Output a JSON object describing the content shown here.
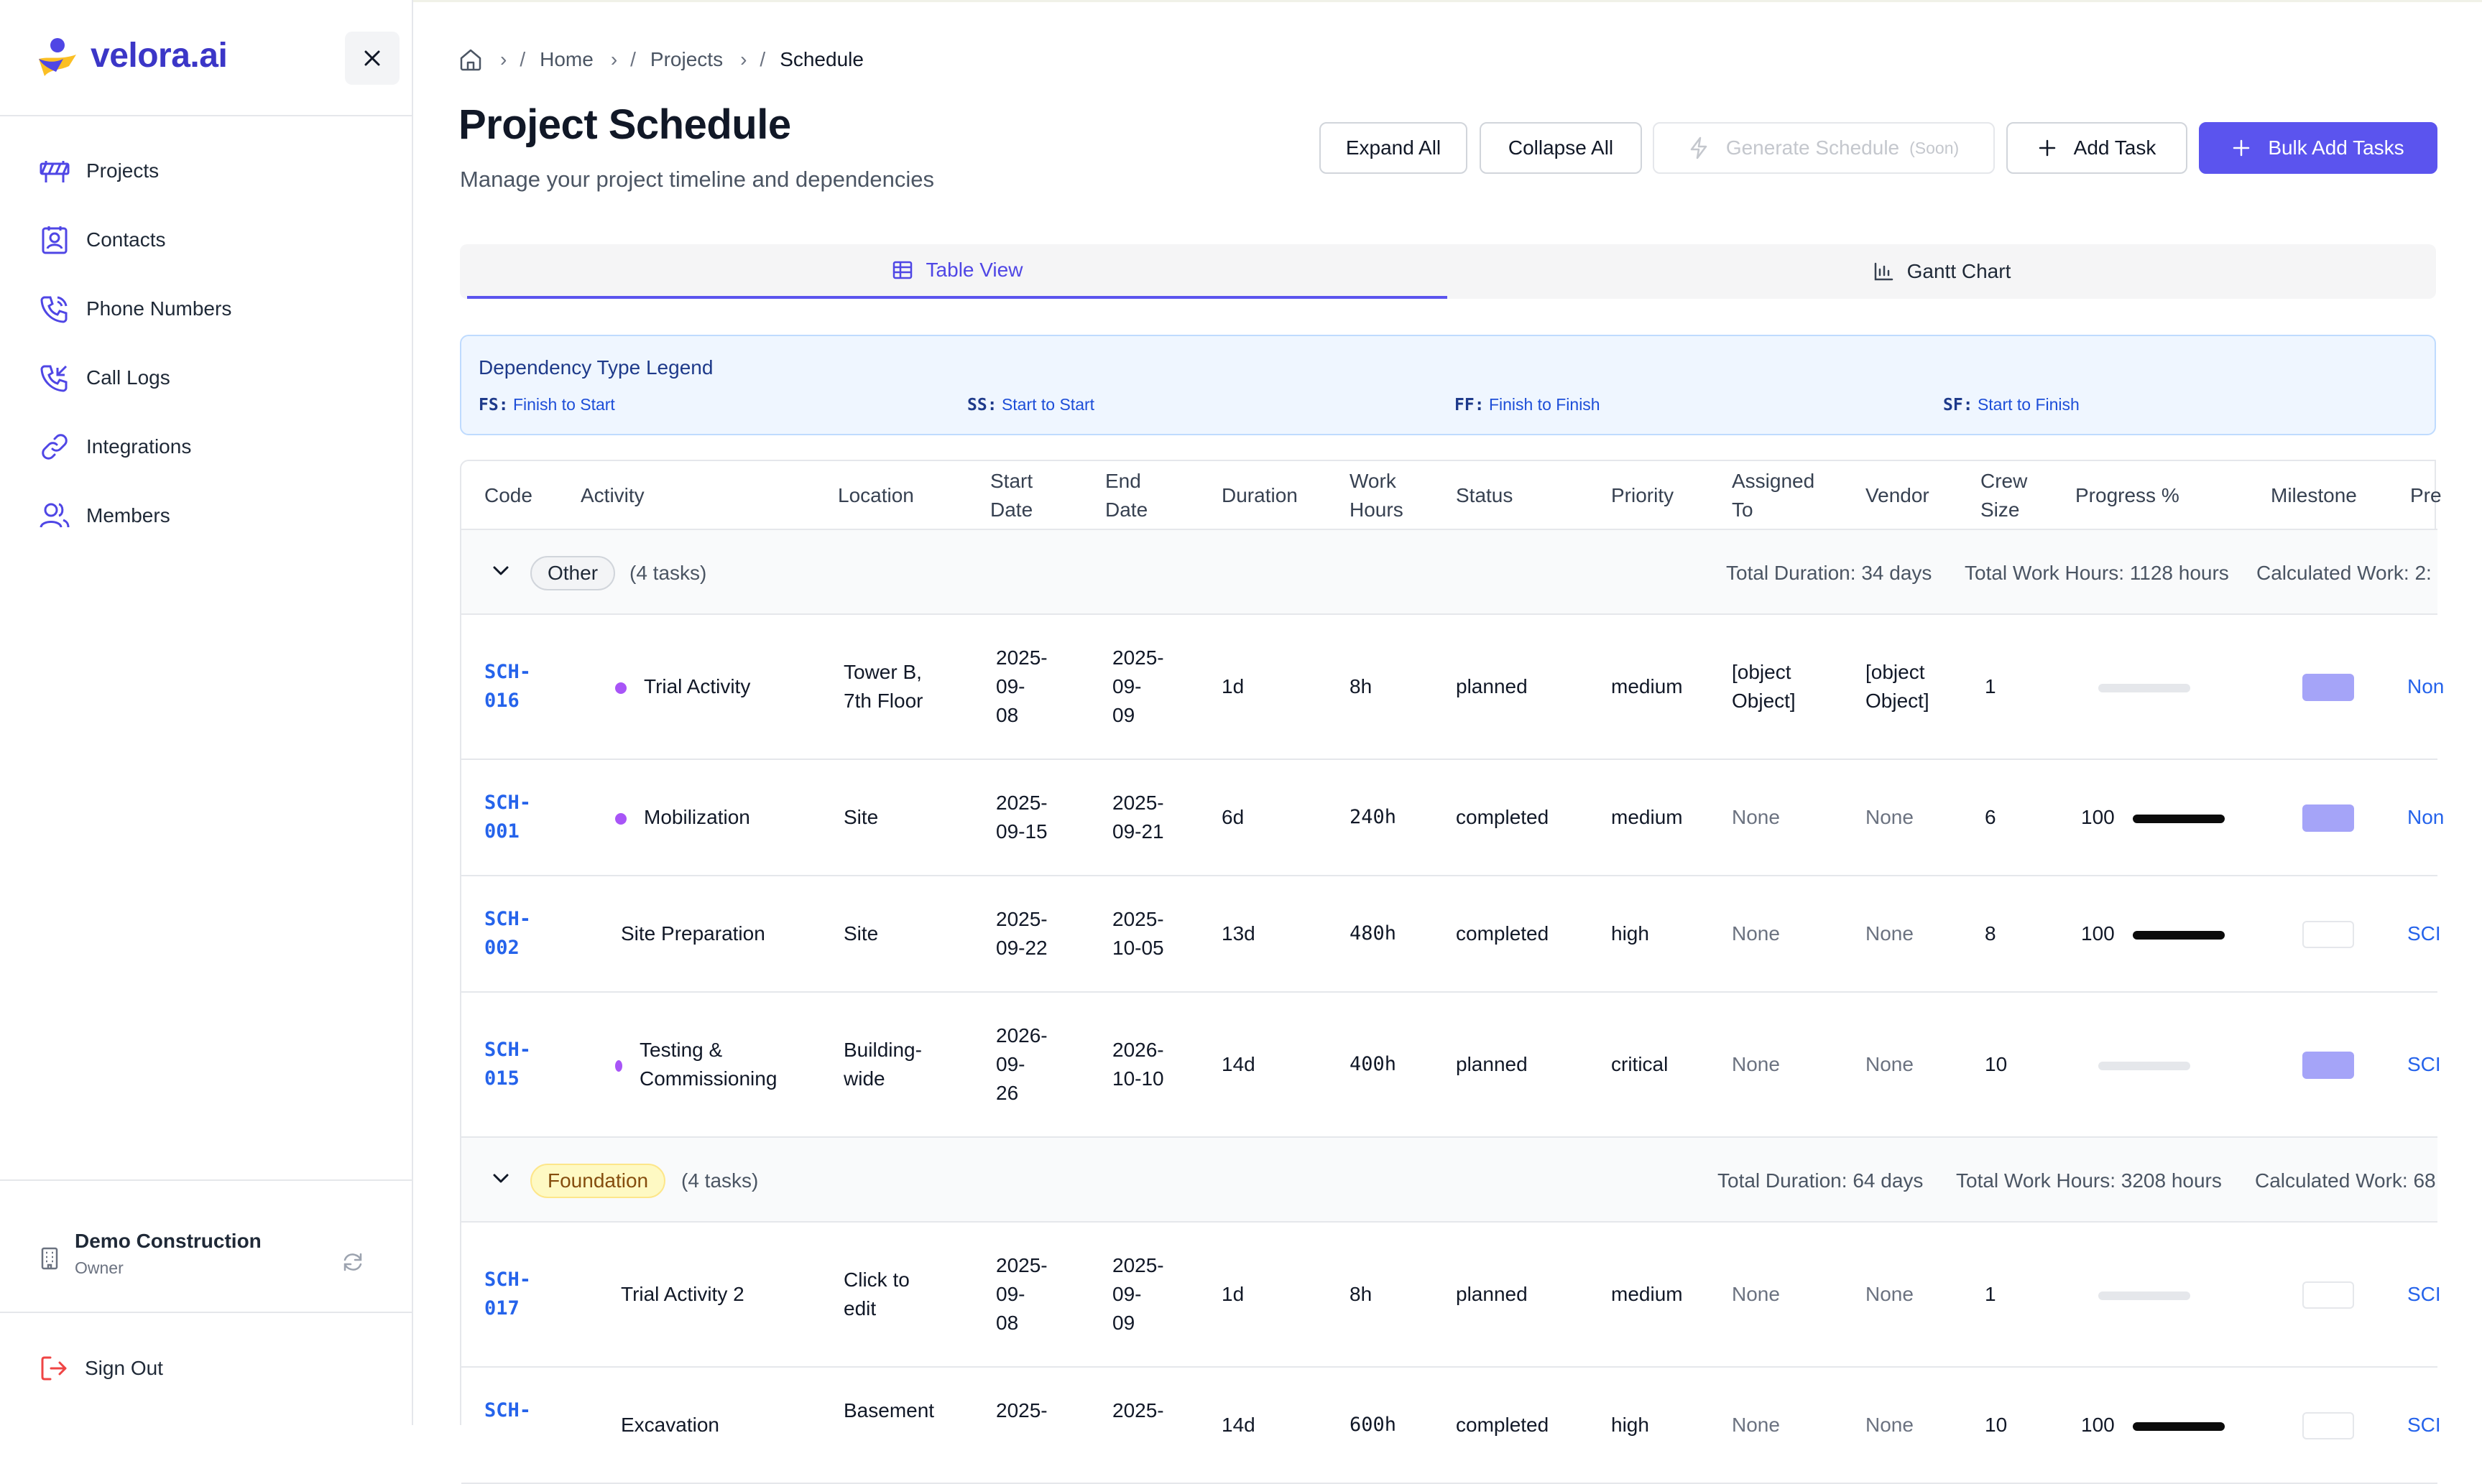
{
  "brand": {
    "name": "velora.ai",
    "accent": "#3b36c7",
    "primary": "#5b54ee"
  },
  "sidebar": {
    "items": [
      {
        "label": "Projects",
        "icon": "construction-barrier-icon"
      },
      {
        "label": "Contacts",
        "icon": "contact-card-icon"
      },
      {
        "label": "Phone Numbers",
        "icon": "phone-icon"
      },
      {
        "label": "Call Logs",
        "icon": "phone-incoming-icon"
      },
      {
        "label": "Integrations",
        "icon": "link-icon"
      },
      {
        "label": "Members",
        "icon": "users-icon"
      }
    ],
    "org": {
      "name": "Demo Construction",
      "role": "Owner"
    },
    "sign_out": "Sign Out"
  },
  "breadcrumb": {
    "home": "Home",
    "projects": "Projects",
    "current": "Schedule"
  },
  "header": {
    "title": "Project Schedule",
    "subtitle": "Manage your project timeline and dependencies"
  },
  "toolbar": {
    "expand_all": "Expand All",
    "collapse_all": "Collapse All",
    "generate": "Generate Schedule",
    "generate_soon": "(Soon)",
    "add_task": "Add Task",
    "bulk_add": "Bulk Add Tasks"
  },
  "tabs": {
    "table": "Table View",
    "gantt": "Gantt Chart"
  },
  "legend": {
    "title": "Dependency Type Legend",
    "items": [
      {
        "code": "FS:",
        "label": "Finish to Start"
      },
      {
        "code": "SS:",
        "label": "Start to Start"
      },
      {
        "code": "FF:",
        "label": "Finish to Finish"
      },
      {
        "code": "SF:",
        "label": "Start to Finish"
      }
    ]
  },
  "table": {
    "columns": {
      "code": "Code",
      "activity": "Activity",
      "location": "Location",
      "start_1": "Start",
      "start_2": "Date",
      "end_1": "End",
      "end_2": "Date",
      "duration": "Duration",
      "work_1": "Work",
      "work_2": "Hours",
      "status": "Status",
      "priority": "Priority",
      "assigned_1": "Assigned",
      "assigned_2": "To",
      "vendor": "Vendor",
      "crew_1": "Crew",
      "crew_2": "Size",
      "progress": "Progress %",
      "milestone": "Milestone",
      "pred": "Pre"
    },
    "groups": [
      {
        "name": "Other",
        "count": "(4 tasks)",
        "total_duration": "Total Duration: 34 days",
        "total_hours": "Total Work Hours: 1128 hours",
        "calculated": "Calculated Work: 2:",
        "rows": [
          {
            "code_1": "SCH-",
            "code_2": "016",
            "activity_1": "Trial Activity",
            "activity_2": "",
            "location_1": "Tower B,",
            "location_2": "7th Floor",
            "start_1": "2025-",
            "start_2": "09-",
            "start_3": "08",
            "end_1": "2025-",
            "end_2": "09-",
            "end_3": "09",
            "duration": "1d",
            "hours": "8h",
            "status": "planned",
            "priority": "medium",
            "assigned_1": "[object",
            "assigned_2": "Object]",
            "vendor_1": "[object",
            "vendor_2": "Object]",
            "crew": "1",
            "progress": "",
            "progress_value": 0,
            "milestone": true,
            "pred": "Non"
          },
          {
            "code_1": "SCH-",
            "code_2": "001",
            "activity_1": "Mobilization",
            "activity_2": "",
            "location_1": "Site",
            "location_2": "",
            "start_1": "2025-",
            "start_2": "09-15",
            "start_3": "",
            "end_1": "2025-",
            "end_2": "09-21",
            "end_3": "",
            "duration": "6d",
            "hours": "240h",
            "status": "completed",
            "priority": "medium",
            "assigned_1": "None",
            "assigned_2": "",
            "vendor_1": "None",
            "vendor_2": "",
            "crew": "6",
            "progress": "100",
            "progress_value": 100,
            "milestone": true,
            "pred": "Non"
          },
          {
            "code_1": "SCH-",
            "code_2": "002",
            "activity_1": "Site Preparation",
            "activity_2": "",
            "location_1": "Site",
            "location_2": "",
            "start_1": "2025-",
            "start_2": "09-22",
            "start_3": "",
            "end_1": "2025-",
            "end_2": "10-05",
            "end_3": "",
            "duration": "13d",
            "hours": "480h",
            "status": "completed",
            "priority": "high",
            "assigned_1": "None",
            "assigned_2": "",
            "vendor_1": "None",
            "vendor_2": "",
            "crew": "8",
            "progress": "100",
            "progress_value": 100,
            "milestone": false,
            "pred": "SCI"
          },
          {
            "code_1": "SCH-",
            "code_2": "015",
            "activity_1": "Testing &",
            "activity_2": "Commissioning",
            "location_1": "Building-",
            "location_2": "wide",
            "start_1": "2026-",
            "start_2": "09-",
            "start_3": "26",
            "end_1": "2026-",
            "end_2": "10-10",
            "end_3": "",
            "duration": "14d",
            "hours": "400h",
            "status": "planned",
            "priority": "critical",
            "assigned_1": "None",
            "assigned_2": "",
            "vendor_1": "None",
            "vendor_2": "",
            "crew": "10",
            "progress": "",
            "progress_value": 0,
            "milestone": true,
            "pred": "SCI"
          }
        ]
      },
      {
        "name": "Foundation",
        "count": "(4 tasks)",
        "total_duration": "Total Duration: 64 days",
        "total_hours": "Total Work Hours: 3208 hours",
        "calculated": "Calculated Work: 68",
        "rows": [
          {
            "code_1": "SCH-",
            "code_2": "017",
            "activity_1": "Trial Activity 2",
            "activity_2": "",
            "location_1": "Click to",
            "location_2": "edit",
            "start_1": "2025-",
            "start_2": "09-",
            "start_3": "08",
            "end_1": "2025-",
            "end_2": "09-",
            "end_3": "09",
            "duration": "1d",
            "hours": "8h",
            "status": "planned",
            "priority": "medium",
            "assigned_1": "None",
            "assigned_2": "",
            "vendor_1": "None",
            "vendor_2": "",
            "crew": "1",
            "progress": "",
            "progress_value": 0,
            "milestone": false,
            "pred": "SCI"
          },
          {
            "code_1": "SCH-",
            "code_2": "",
            "activity_1": "Excavation",
            "activity_2": "",
            "location_1": "Basement",
            "location_2": "",
            "start_1": "2025-",
            "start_2": "",
            "start_3": "",
            "end_1": "2025-",
            "end_2": "",
            "end_3": "",
            "duration": "14d",
            "hours": "600h",
            "status": "completed",
            "priority": "high",
            "assigned_1": "None",
            "assigned_2": "",
            "vendor_1": "None",
            "vendor_2": "",
            "crew": "10",
            "progress": "100",
            "progress_value": 100,
            "milestone": false,
            "pred": "SCI"
          }
        ]
      }
    ]
  }
}
